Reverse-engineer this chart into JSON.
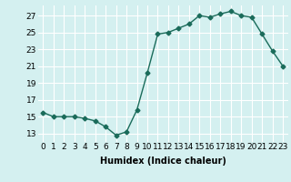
{
  "x": [
    0,
    1,
    2,
    3,
    4,
    5,
    6,
    7,
    8,
    9,
    10,
    11,
    12,
    13,
    14,
    15,
    16,
    17,
    18,
    19,
    20,
    21,
    22,
    23
  ],
  "y": [
    15.5,
    15,
    15,
    15,
    14.8,
    14.5,
    13.8,
    12.8,
    13.2,
    15.8,
    20.2,
    24.8,
    25,
    25.5,
    26.0,
    27,
    26.8,
    27.2,
    27.5,
    27,
    26.8,
    24.8,
    22.8,
    21
  ],
  "line_color": "#1a6b5a",
  "marker": "D",
  "markersize": 2.5,
  "linewidth": 1.0,
  "bg_color": "#d4f0f0",
  "grid_color": "#ffffff",
  "xlabel": "Humidex (Indice chaleur)",
  "xlabel_fontsize": 7,
  "xtick_labels": [
    "0",
    "1",
    "2",
    "3",
    "4",
    "5",
    "6",
    "7",
    "8",
    "9",
    "10",
    "11",
    "12",
    "13",
    "14",
    "15",
    "16",
    "17",
    "18",
    "19",
    "20",
    "21",
    "22",
    "23"
  ],
  "ytick_values": [
    13,
    15,
    17,
    19,
    21,
    23,
    25,
    27
  ],
  "ylim": [
    12.0,
    28.2
  ],
  "xlim": [
    -0.5,
    23.5
  ],
  "tick_fontsize": 6.5
}
